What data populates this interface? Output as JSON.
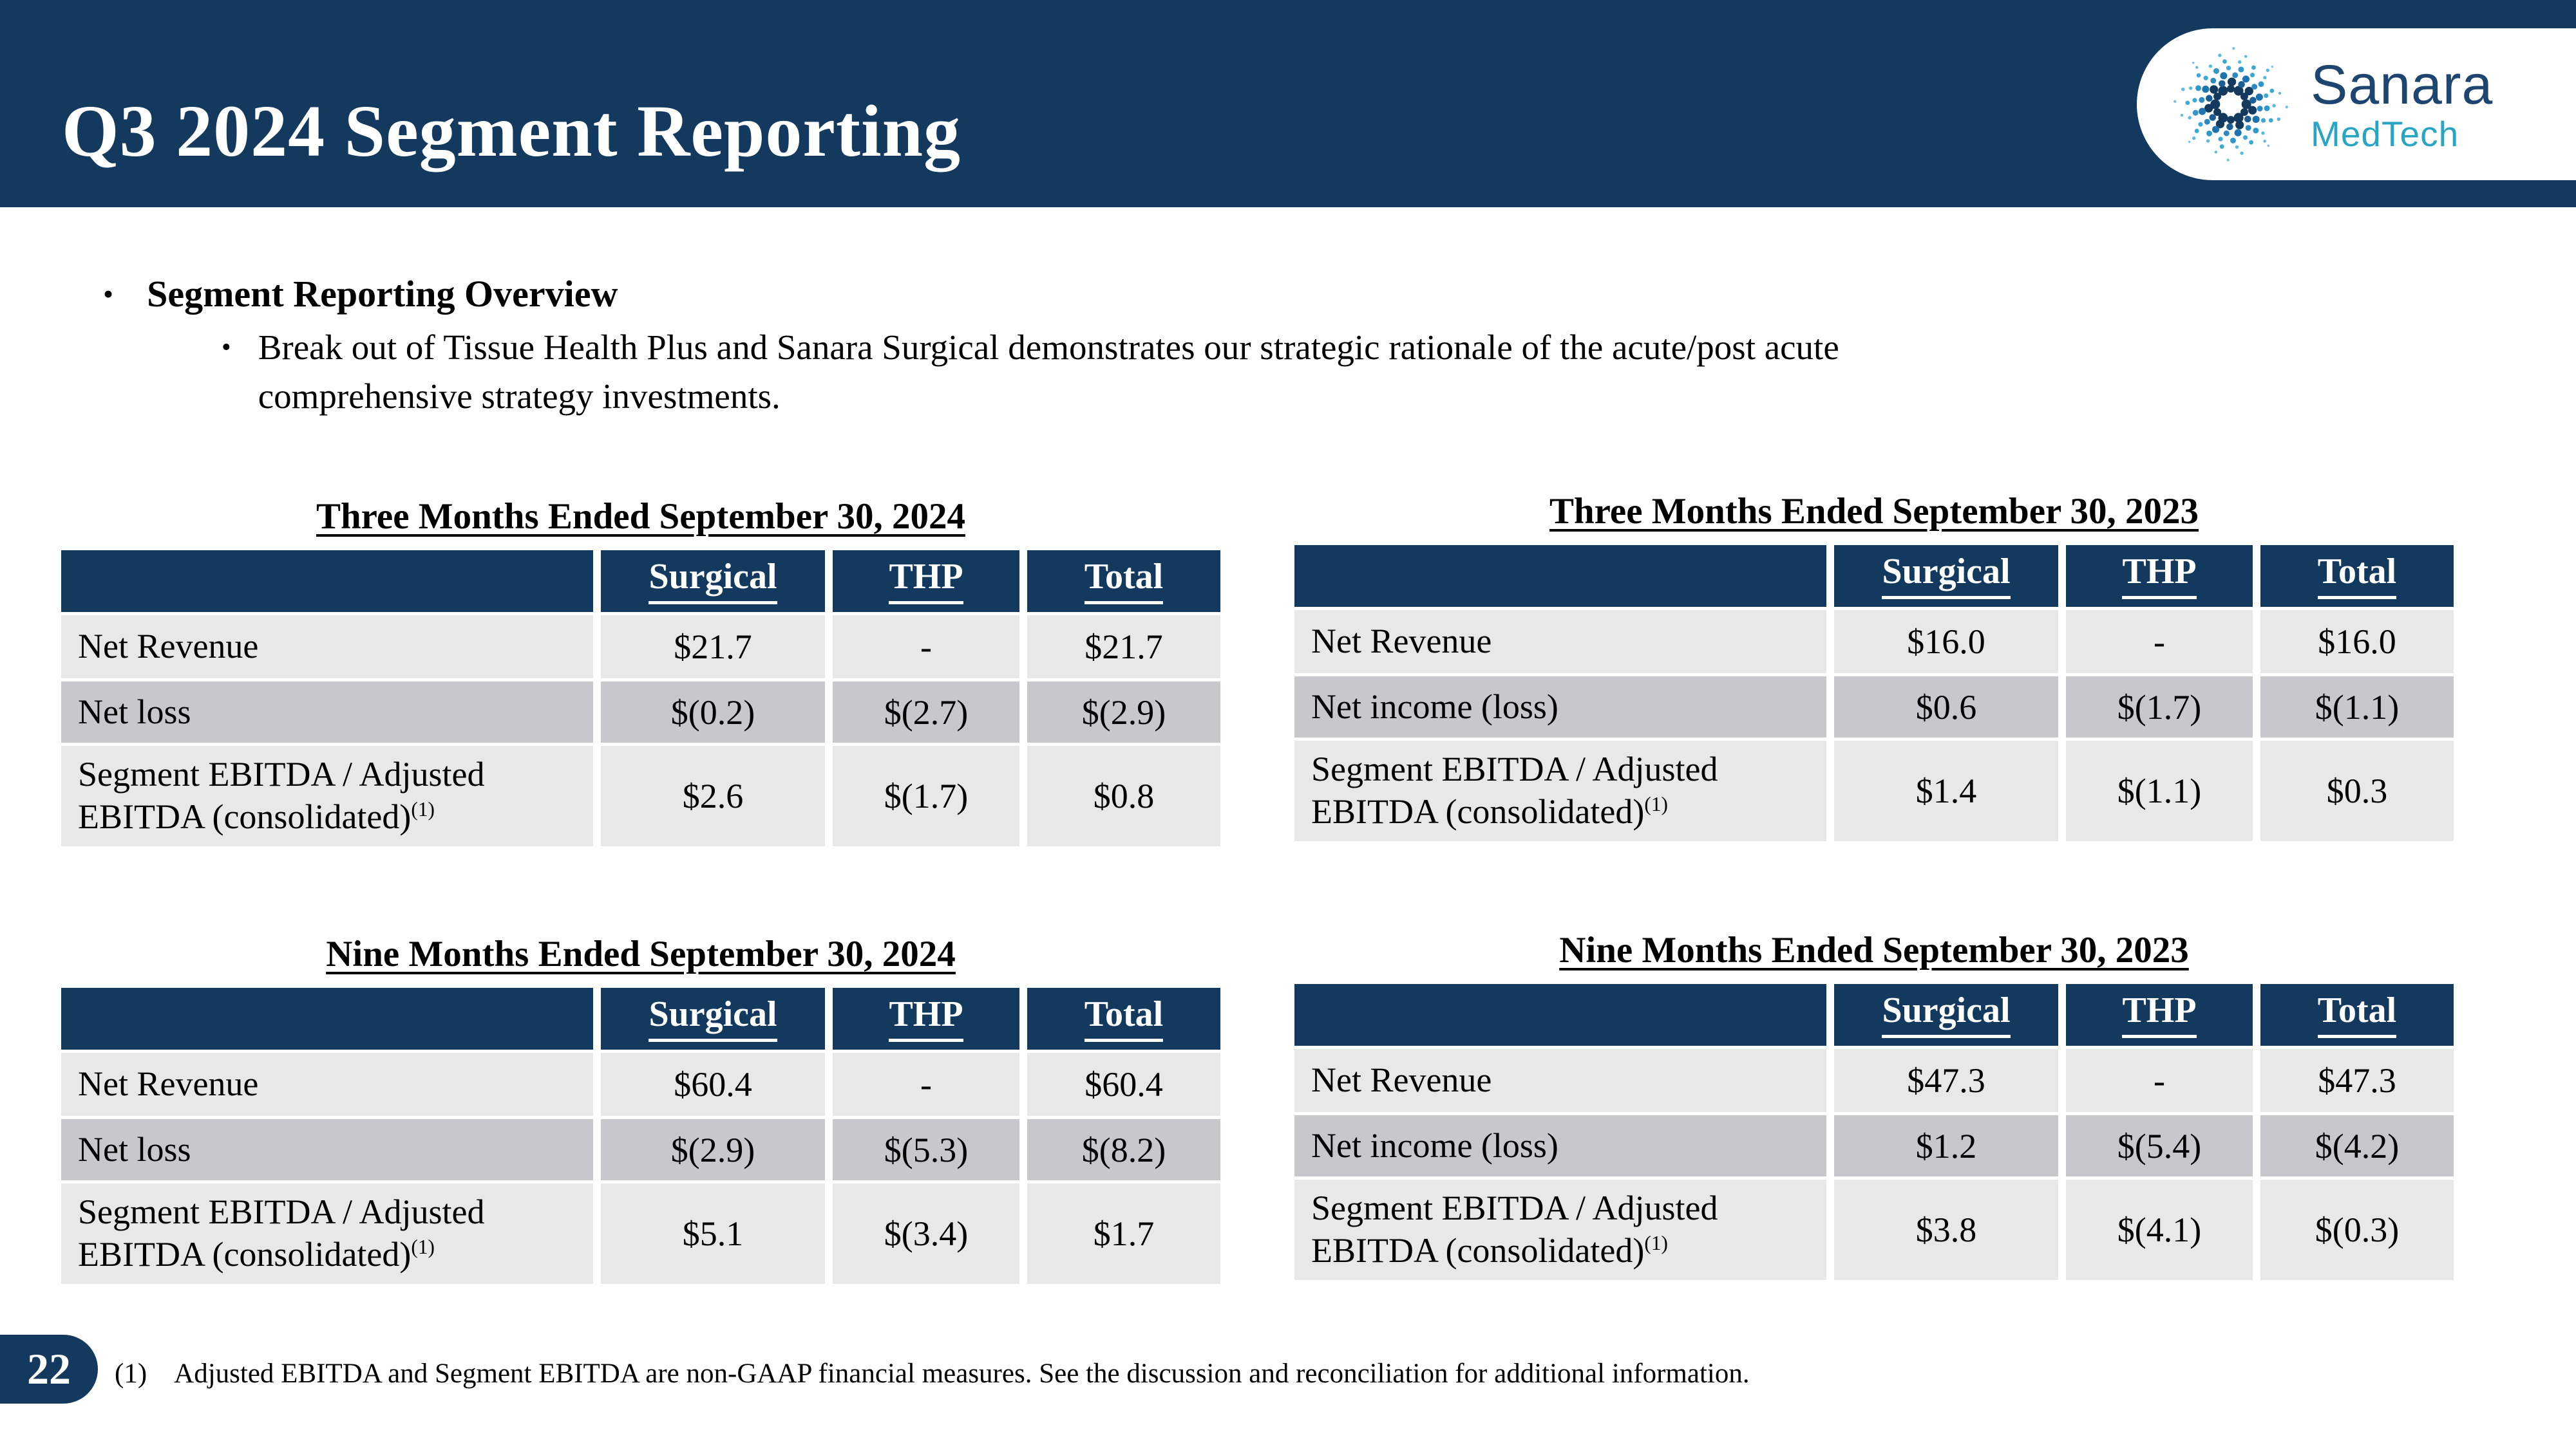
{
  "header": {
    "title": "Q3 2024 Segment Reporting",
    "logo": {
      "name": "Sanara",
      "sub": "MedTech"
    }
  },
  "overview": {
    "bullet_char": "•",
    "heading": "Segment Reporting Overview",
    "sub_bullet_char": "•",
    "lines": [
      "Break out of Tissue Health Plus and Sanara Surgical demonstrates our strategic rationale of the acute/post acute",
      "comprehensive strategy investments."
    ]
  },
  "tables": [
    {
      "title": "Three Months Ended September 30, 2024",
      "columns": [
        "Surgical",
        "THP",
        "Total"
      ],
      "rows": [
        {
          "label": "Net Revenue",
          "cells": [
            "$21.7",
            "-",
            "$21.7"
          ]
        },
        {
          "label": "Net loss",
          "cells": [
            "$(0.2)",
            "$(2.7)",
            "$(2.9)"
          ]
        },
        {
          "label": "Segment EBITDA / Adjusted EBITDA (consolidated)",
          "label_sup": "(1)",
          "cells": [
            "$2.6",
            "$(1.7)",
            "$0.8"
          ]
        }
      ]
    },
    {
      "title": "Three Months Ended September 30, 2023",
      "columns": [
        "Surgical",
        "THP",
        "Total"
      ],
      "rows": [
        {
          "label": "Net Revenue",
          "cells": [
            "$16.0",
            "-",
            "$16.0"
          ]
        },
        {
          "label": "Net income (loss)",
          "cells": [
            "$0.6",
            "$(1.7)",
            "$(1.1)"
          ]
        },
        {
          "label": "Segment EBITDA / Adjusted EBITDA (consolidated)",
          "label_sup": "(1)",
          "cells": [
            "$1.4",
            "$(1.1)",
            "$0.3"
          ]
        }
      ]
    },
    {
      "title": "Nine Months Ended September 30, 2024",
      "columns": [
        "Surgical",
        "THP",
        "Total"
      ],
      "rows": [
        {
          "label": "Net Revenue",
          "cells": [
            "$60.4",
            "-",
            "$60.4"
          ]
        },
        {
          "label": "Net loss",
          "cells": [
            "$(2.9)",
            "$(5.3)",
            "$(8.2)"
          ]
        },
        {
          "label": "Segment EBITDA / Adjusted EBITDA (consolidated)",
          "label_sup": "(1)",
          "cells": [
            "$5.1",
            "$(3.4)",
            "$1.7"
          ]
        }
      ]
    },
    {
      "title": "Nine Months Ended September 30, 2023",
      "columns": [
        "Surgical",
        "THP",
        "Total"
      ],
      "rows": [
        {
          "label": "Net Revenue",
          "cells": [
            "$47.3",
            "-",
            "$47.3"
          ]
        },
        {
          "label": "Net income (loss)",
          "cells": [
            "$1.2",
            "$(5.4)",
            "$(4.2)"
          ]
        },
        {
          "label": "Segment EBITDA / Adjusted EBITDA (consolidated)",
          "label_sup": "(1)",
          "cells": [
            "$3.8",
            "$(4.1)",
            "$(0.3)"
          ]
        }
      ]
    }
  ],
  "footer": {
    "page_number": "22",
    "footnote_marker": "(1)",
    "footnote_text": "Adjusted EBITDA and Segment EBITDA are non-GAAP financial measures. See the discussion and reconciliation for additional information."
  },
  "colors": {
    "brand_navy": "#14395E",
    "brand_teal": "#28A5C2",
    "row_light": "#E8E8E9",
    "row_dark": "#C6C8CC"
  }
}
